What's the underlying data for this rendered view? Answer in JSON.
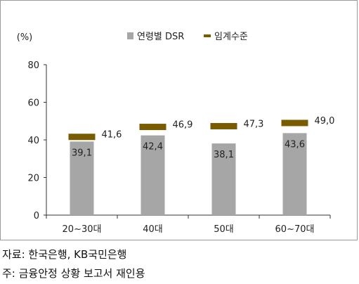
{
  "chart_data": {
    "type": "bar",
    "ylabel": "(%)",
    "ylim": [
      0,
      80
    ],
    "yticks": [
      0,
      20,
      40,
      60,
      80
    ],
    "categories": [
      "20~30대",
      "40대",
      "50대",
      "60~70대"
    ],
    "series": [
      {
        "name": "연령별 DSR",
        "type": "bar",
        "color": "#a6a6a6",
        "values": [
          39.1,
          42.4,
          38.1,
          43.6
        ],
        "labels": [
          "39,1",
          "42,4",
          "38,1",
          "43,6"
        ]
      },
      {
        "name": "임계수준",
        "type": "marker",
        "color": "#7a5c00",
        "values": [
          41.6,
          46.9,
          47.3,
          49.0
        ],
        "labels": [
          "41,6",
          "46,9",
          "47,3",
          "49,0"
        ]
      }
    ],
    "legend": "top-center",
    "grid": false
  },
  "notes": {
    "source": "자료: 한국은행, KB국민은행",
    "footnote": "주: 금융안정 상황 보고서 재인용"
  }
}
